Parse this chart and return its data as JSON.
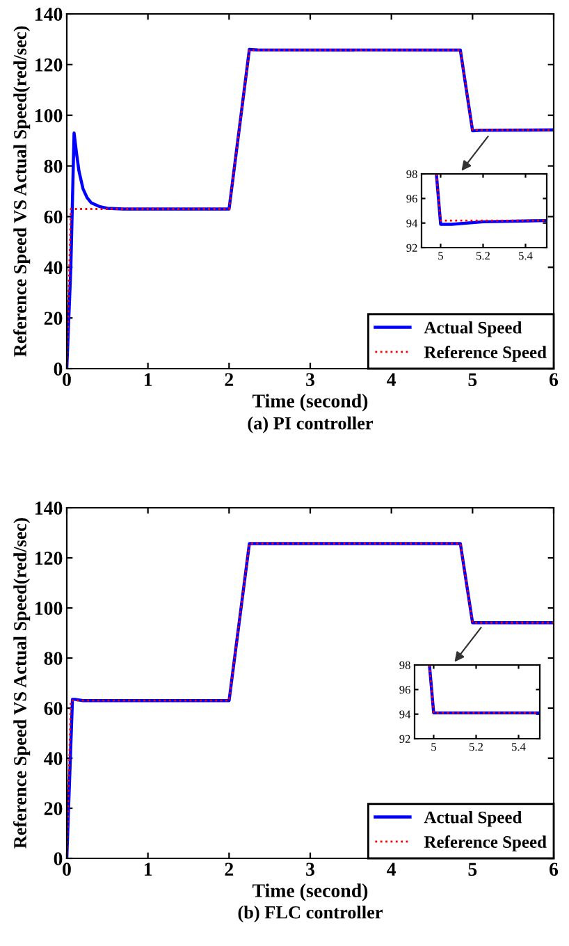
{
  "chart_data": [
    {
      "type": "line",
      "title": "(a) PI controller",
      "xlabel": "Time (second)",
      "ylabel": "Reference Speed VS Actual Speed(red/sec)",
      "xlim": [
        0,
        6
      ],
      "ylim": [
        0,
        140
      ],
      "xticks": [
        0,
        1,
        2,
        3,
        4,
        5,
        6
      ],
      "yticks": [
        0,
        20,
        40,
        60,
        80,
        100,
        120,
        140
      ],
      "grid": false,
      "legend": "bottom right",
      "series": [
        {
          "name": "Actual Speed",
          "color": "#0000ff",
          "line_style": "solid",
          "x": [
            0,
            0.05,
            0.09,
            0.12,
            0.15,
            0.2,
            0.25,
            0.3,
            0.4,
            0.5,
            0.7,
            2,
            2.25,
            2.35,
            4.85,
            5.0,
            5.1,
            6
          ],
          "values": [
            0,
            40,
            93,
            85,
            78,
            71,
            67.5,
            65.5,
            64,
            63.3,
            63,
            63,
            126,
            125.8,
            125.7,
            93.9,
            94.1,
            94.2
          ]
        },
        {
          "name": "Reference Speed",
          "color": "#ff0000",
          "line_style": "dotted",
          "x": [
            0,
            0.05,
            2,
            2.25,
            4.85,
            5.0,
            6
          ],
          "values": [
            0,
            63,
            63,
            125.7,
            125.7,
            94.2,
            94.2
          ]
        }
      ]
    },
    {
      "type": "line",
      "xlim": [
        4.91,
        5.5
      ],
      "ylim": [
        92,
        98
      ],
      "xticks": [
        5,
        5.2,
        5.4
      ],
      "yticks": [
        92,
        94,
        96,
        98
      ],
      "grid": false,
      "series": [
        {
          "color": "#0000ff",
          "line_style": "solid",
          "x": [
            4.98,
            5.0,
            5.05,
            5.2,
            5.5
          ],
          "values": [
            98,
            93.9,
            93.9,
            94.1,
            94.2
          ]
        },
        {
          "color": "#ff0000",
          "line_style": "dotted",
          "x": [
            4.98,
            5.0,
            5.5
          ],
          "values": [
            98,
            94.2,
            94.2
          ]
        }
      ]
    },
    {
      "type": "line",
      "title": "(b) FLC controller",
      "xlabel": "Time (second)",
      "ylabel": "Reference Speed VS Actual Speed(red/sec)",
      "xlim": [
        0,
        6
      ],
      "ylim": [
        0,
        140
      ],
      "xticks": [
        0,
        1,
        2,
        3,
        4,
        5,
        6
      ],
      "yticks": [
        0,
        20,
        40,
        60,
        80,
        100,
        120,
        140
      ],
      "grid": false,
      "legend": "bottom right",
      "series": [
        {
          "name": "Actual Speed",
          "color": "#0000ff",
          "line_style": "solid",
          "x": [
            0,
            0.07,
            0.1,
            0.2,
            2,
            2.25,
            4.85,
            5.0,
            6
          ],
          "values": [
            0,
            63.5,
            63.5,
            63,
            63,
            125.7,
            125.7,
            94.1,
            94.1
          ]
        },
        {
          "name": "Reference Speed",
          "color": "#ff0000",
          "line_style": "dotted",
          "x": [
            0,
            0.05,
            2,
            2.25,
            4.85,
            5.0,
            6
          ],
          "values": [
            0,
            63,
            63,
            125.7,
            125.7,
            94.1,
            94.1
          ]
        }
      ]
    },
    {
      "type": "line",
      "xlim": [
        4.91,
        5.5
      ],
      "ylim": [
        92,
        98
      ],
      "xticks": [
        5,
        5.2,
        5.4
      ],
      "yticks": [
        92,
        94,
        96,
        98
      ],
      "grid": false,
      "series": [
        {
          "color": "#0000ff",
          "line_style": "solid",
          "x": [
            4.98,
            5.0,
            5.5
          ],
          "values": [
            98,
            94.1,
            94.1
          ]
        },
        {
          "color": "#ff0000",
          "line_style": "dotted",
          "x": [
            4.98,
            5.0,
            5.5
          ],
          "values": [
            98,
            94.1,
            94.1
          ]
        }
      ]
    }
  ]
}
